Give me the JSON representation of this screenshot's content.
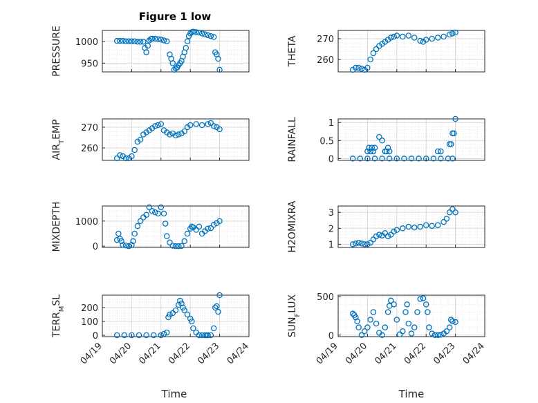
{
  "figure": {
    "title": "Figure 1 low",
    "xlabel": "Time",
    "x_ticks": [
      "04/19",
      "04/20",
      "04/21",
      "04/22",
      "04/23",
      "04/24"
    ],
    "marker_color": "#0072BD"
  },
  "chart_data": [
    {
      "type": "scatter",
      "ylabel": "PRESSURE",
      "ylim": [
        930,
        1025
      ],
      "yticks": [
        950,
        1000
      ],
      "ytick_labels": [
        "950",
        "1000"
      ],
      "x": [
        0.5,
        0.6,
        0.7,
        0.8,
        0.9,
        1.0,
        1.1,
        1.2,
        1.3,
        1.4,
        1.45,
        1.5,
        1.55,
        1.6,
        1.65,
        1.7,
        1.8,
        1.9,
        2.0,
        2.1,
        2.2,
        2.3,
        2.35,
        2.4,
        2.45,
        2.5,
        2.55,
        2.6,
        2.65,
        2.7,
        2.75,
        2.8,
        2.85,
        2.9,
        2.95,
        3.0,
        3.05,
        3.1,
        3.2,
        3.3,
        3.4,
        3.5,
        3.6,
        3.7,
        3.8,
        3.85,
        3.9,
        3.95,
        4.0
      ],
      "y": [
        1001,
        1001,
        1001,
        1000,
        1000,
        1000,
        1000,
        999,
        999,
        999,
        985,
        975,
        990,
        1002,
        1005,
        1006,
        1006,
        1005,
        1004,
        1002,
        1000,
        970,
        960,
        950,
        935,
        938,
        940,
        945,
        950,
        955,
        965,
        975,
        985,
        1000,
        1012,
        1018,
        1021,
        1022,
        1021,
        1020,
        1018,
        1016,
        1014,
        1012,
        1010,
        975,
        970,
        960,
        935
      ]
    },
    {
      "type": "scatter",
      "ylabel": "THETA",
      "ylim": [
        254,
        274
      ],
      "yticks": [
        260,
        270
      ],
      "ytick_labels": [
        "260",
        "270"
      ],
      "x": [
        0.5,
        0.6,
        0.7,
        0.8,
        0.9,
        1.0,
        1.1,
        1.2,
        1.3,
        1.4,
        1.5,
        1.6,
        1.7,
        1.8,
        1.9,
        2.0,
        2.2,
        2.4,
        2.6,
        2.8,
        2.9,
        3.0,
        3.2,
        3.4,
        3.6,
        3.8,
        3.9,
        4.0
      ],
      "y": [
        255,
        256,
        256,
        255.5,
        255,
        256,
        260,
        263,
        265,
        266.5,
        267.5,
        268.5,
        269.5,
        270.5,
        271,
        271.5,
        271,
        271.5,
        270.5,
        269,
        268.5,
        269.5,
        270,
        270.5,
        271,
        272,
        272.5,
        273
      ]
    },
    {
      "type": "scatter",
      "ylabel": "AIR_TEMP",
      "ylim": [
        254,
        274
      ],
      "yticks": [
        260,
        270
      ],
      "ytick_labels": [
        "260",
        "270"
      ],
      "x": [
        0.5,
        0.6,
        0.7,
        0.8,
        0.9,
        1.0,
        1.1,
        1.2,
        1.3,
        1.4,
        1.5,
        1.6,
        1.7,
        1.8,
        1.9,
        2.0,
        2.1,
        2.2,
        2.3,
        2.4,
        2.5,
        2.6,
        2.7,
        2.8,
        2.9,
        3.0,
        3.2,
        3.4,
        3.6,
        3.7,
        3.8,
        3.9,
        4.0
      ],
      "y": [
        255,
        256.5,
        256,
        255,
        255,
        256,
        259,
        263,
        264,
        266.5,
        267.5,
        268.5,
        269.5,
        270.5,
        271,
        271.5,
        268.5,
        267.5,
        266.5,
        267,
        266,
        266.5,
        267,
        268,
        270,
        271,
        271.5,
        271,
        271.5,
        272,
        270.5,
        270,
        269
      ]
    },
    {
      "type": "scatter",
      "ylabel": "RAINFALL",
      "ylim": [
        -0.05,
        1.1
      ],
      "yticks": [
        0,
        0.5,
        1
      ],
      "ytick_labels": [
        "0",
        "0.5",
        "1"
      ],
      "x": [
        0.5,
        0.75,
        1.0,
        1.25,
        1.5,
        1.75,
        2.0,
        2.25,
        2.5,
        2.75,
        3.0,
        3.25,
        3.5,
        3.75,
        3.9,
        1.0,
        1.05,
        1.1,
        1.15,
        1.2,
        1.25,
        1.4,
        1.5,
        1.6,
        1.65,
        1.7,
        1.75,
        3.4,
        3.5,
        3.8,
        3.85,
        3.9,
        3.95,
        4.0
      ],
      "y": [
        0,
        0,
        0,
        0,
        0,
        0,
        0,
        0,
        0,
        0,
        0,
        0,
        0,
        0,
        0,
        0.2,
        0.3,
        0.2,
        0.3,
        0.2,
        0.3,
        0.6,
        0.5,
        0.2,
        0.2,
        0.3,
        0.2,
        0.2,
        0.2,
        0.4,
        0.4,
        0.7,
        0.7,
        1.1
      ]
    },
    {
      "type": "scatter",
      "ylabel": "MIXDEPTH",
      "ylim": [
        -50,
        1600
      ],
      "yticks": [
        0,
        1000
      ],
      "ytick_labels": [
        "0",
        "1000"
      ],
      "x": [
        0.5,
        0.55,
        0.6,
        0.65,
        0.7,
        0.8,
        0.9,
        1.0,
        1.05,
        1.1,
        1.2,
        1.3,
        1.4,
        1.5,
        1.6,
        1.7,
        1.8,
        1.9,
        2.0,
        2.1,
        2.15,
        2.2,
        2.3,
        2.4,
        2.5,
        2.6,
        2.7,
        2.8,
        2.9,
        3.0,
        3.05,
        3.1,
        3.2,
        3.3,
        3.4,
        3.5,
        3.6,
        3.7,
        3.8,
        3.9,
        4.0
      ],
      "y": [
        250,
        500,
        300,
        200,
        50,
        30,
        0,
        50,
        200,
        500,
        800,
        1000,
        1150,
        1250,
        1550,
        1400,
        1350,
        1300,
        1550,
        1300,
        900,
        400,
        150,
        20,
        0,
        0,
        10,
        200,
        500,
        700,
        780,
        750,
        650,
        780,
        500,
        600,
        700,
        720,
        850,
        920,
        1000
      ]
    },
    {
      "type": "scatter",
      "ylabel": "H2OMIXRA",
      "ylim": [
        0.8,
        3.4
      ],
      "yticks": [
        1,
        2,
        3
      ],
      "ytick_labels": [
        "1",
        "2",
        "3"
      ],
      "x": [
        0.5,
        0.6,
        0.7,
        0.8,
        0.9,
        1.0,
        1.1,
        1.2,
        1.3,
        1.4,
        1.5,
        1.6,
        1.7,
        1.8,
        1.9,
        2.0,
        2.2,
        2.4,
        2.6,
        2.8,
        3.0,
        3.2,
        3.4,
        3.6,
        3.7,
        3.8,
        3.9,
        4.0
      ],
      "y": [
        1.0,
        1.05,
        1.1,
        1.05,
        1.0,
        1.0,
        1.1,
        1.3,
        1.5,
        1.6,
        1.55,
        1.7,
        1.5,
        1.6,
        1.8,
        1.9,
        2.0,
        2.1,
        2.05,
        2.1,
        2.2,
        2.15,
        2.2,
        2.4,
        2.6,
        3.0,
        3.2,
        3.0
      ]
    },
    {
      "type": "scatter",
      "ylabel": "TERR_MSL",
      "ylim": [
        -10,
        290
      ],
      "yticks": [
        0,
        100,
        200
      ],
      "ytick_labels": [
        "0",
        "100",
        "200"
      ],
      "x": [
        0.5,
        0.75,
        1.0,
        1.25,
        1.5,
        1.75,
        2.0,
        2.1,
        2.2,
        2.25,
        2.3,
        2.4,
        2.5,
        2.6,
        2.65,
        2.7,
        2.75,
        2.8,
        2.9,
        3.0,
        3.05,
        3.1,
        3.2,
        3.3,
        3.4,
        3.5,
        3.55,
        3.6,
        3.7,
        3.8,
        3.85,
        3.9,
        3.95,
        4.0
      ],
      "y": [
        0,
        0,
        0,
        0,
        0,
        0,
        0,
        10,
        20,
        130,
        150,
        160,
        180,
        220,
        250,
        230,
        200,
        180,
        150,
        120,
        100,
        50,
        20,
        0,
        0,
        0,
        0,
        0,
        0,
        50,
        200,
        210,
        170,
        290
      ]
    },
    {
      "type": "scatter",
      "ylabel": "SUN_FLUX",
      "ylim": [
        -20,
        520
      ],
      "yticks": [
        0,
        500
      ],
      "ytick_labels": [
        "0",
        "500"
      ],
      "x": [
        0.5,
        0.55,
        0.6,
        0.65,
        0.7,
        0.8,
        0.9,
        1.0,
        1.1,
        1.2,
        1.3,
        1.4,
        1.5,
        1.6,
        1.7,
        1.75,
        1.8,
        1.9,
        2.0,
        2.1,
        2.2,
        2.3,
        2.35,
        2.4,
        2.5,
        2.6,
        2.7,
        2.8,
        2.9,
        3.0,
        3.05,
        3.1,
        3.2,
        3.3,
        3.4,
        3.5,
        3.6,
        3.7,
        3.8,
        3.85,
        3.9,
        4.0
      ],
      "y": [
        280,
        260,
        230,
        180,
        100,
        0,
        50,
        100,
        200,
        300,
        150,
        30,
        0,
        100,
        300,
        380,
        450,
        400,
        200,
        10,
        50,
        300,
        400,
        150,
        20,
        100,
        300,
        470,
        480,
        400,
        300,
        100,
        20,
        0,
        0,
        5,
        20,
        50,
        100,
        200,
        180,
        170
      ]
    }
  ]
}
